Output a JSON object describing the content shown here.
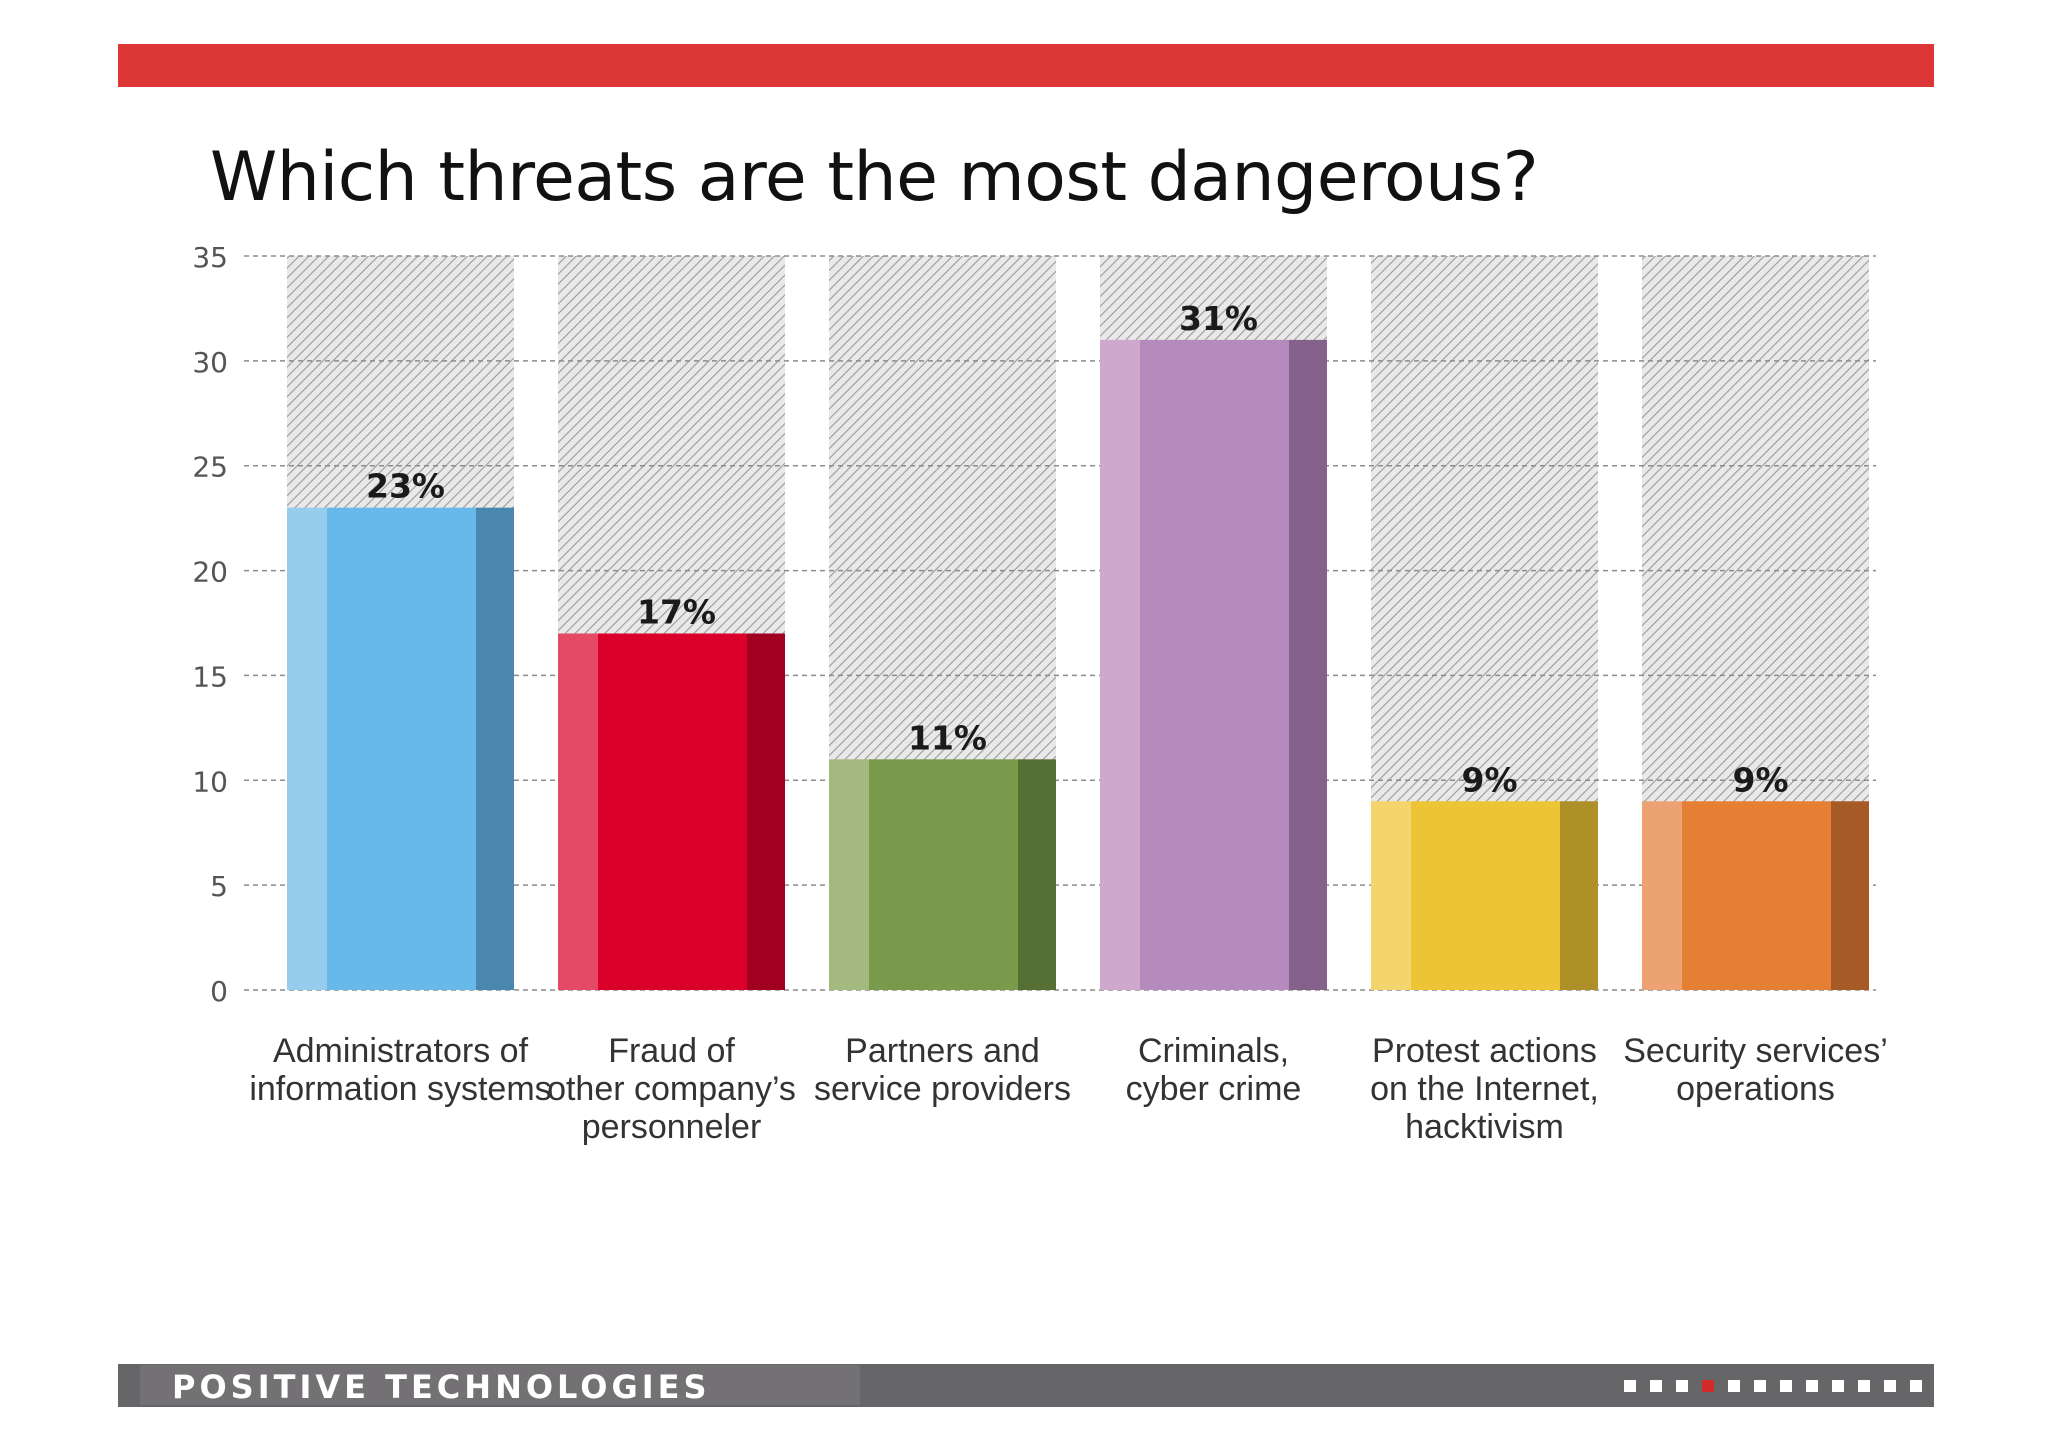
{
  "chart_data": {
    "type": "bar",
    "title": "Which threats are the most dangerous?",
    "categories": [
      [
        "Administrators of",
        "information systems"
      ],
      [
        "Fraud of",
        "other company’s",
        "personneler"
      ],
      [
        "Partners and",
        "service providers"
      ],
      [
        "Criminals,",
        "cyber crime"
      ],
      [
        "Protest actions",
        "on the Internet,",
        "hacktivism"
      ],
      [
        "Security services’",
        "operations"
      ]
    ],
    "values": [
      23,
      17,
      11,
      31,
      9,
      9
    ],
    "data_labels": [
      "23%",
      "17%",
      "11%",
      "31%",
      "9%",
      "9%"
    ],
    "ylim": [
      0,
      35
    ],
    "yticks": [
      0,
      5,
      10,
      15,
      20,
      25,
      30,
      35
    ],
    "grid": true,
    "colors": [
      {
        "light": "#97cdec",
        "main": "#67b9e9",
        "dark": "#4a87ae"
      },
      {
        "light": "#e44a66",
        "main": "#db0029",
        "dark": "#a10020"
      },
      {
        "light": "#a3b980",
        "main": "#7a9a4b",
        "dark": "#566f34"
      },
      {
        "light": "#cfa8cd",
        "main": "#b48bbc",
        "dark": "#85628c"
      },
      {
        "light": "#f4d46d",
        "main": "#eec437",
        "dark": "#ae9028"
      },
      {
        "light": "#eca272",
        "main": "#e47f33",
        "dark": "#a65a25"
      }
    ]
  },
  "footer": {
    "logo": "POSITIVE TECHNOLOGIES",
    "pager_total": 12,
    "pager_current": 4
  },
  "theme": {
    "accent": "#dc3636",
    "footer_bg": "#666567"
  }
}
